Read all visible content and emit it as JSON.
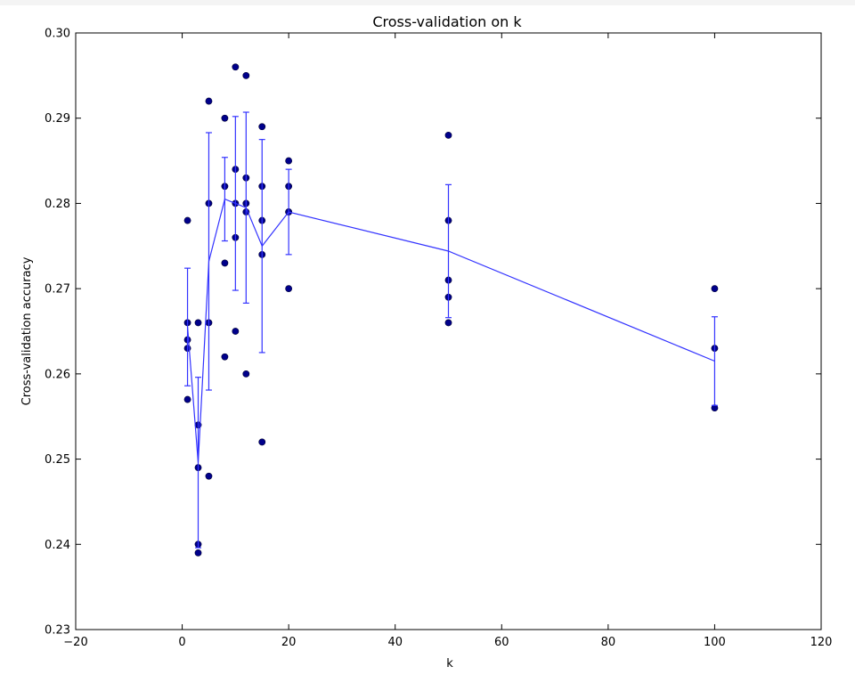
{
  "chart_data": {
    "type": "scatter",
    "title": "Cross-validation on k",
    "xlabel": "k",
    "ylabel": "Cross-validation accuracy",
    "xlim": [
      -20,
      120
    ],
    "ylim": [
      0.23,
      0.3
    ],
    "x_ticks": [
      -20,
      0,
      20,
      40,
      60,
      80,
      100,
      120
    ],
    "y_ticks": [
      0.23,
      0.24,
      0.25,
      0.26,
      0.27,
      0.28,
      0.29,
      0.3
    ],
    "x_tick_labels": [
      "−20",
      "0",
      "20",
      "40",
      "60",
      "80",
      "100",
      "120"
    ],
    "y_tick_labels": [
      "0.23",
      "0.24",
      "0.25",
      "0.26",
      "0.27",
      "0.28",
      "0.29",
      "0.30"
    ],
    "grid": false,
    "legend": "none",
    "colors": {
      "points": "#00008b",
      "line": "#3333ff"
    },
    "series": [
      {
        "type": "scatter",
        "points": [
          [
            1,
            0.257
          ],
          [
            1,
            0.263
          ],
          [
            1,
            0.264
          ],
          [
            1,
            0.266
          ],
          [
            1,
            0.278
          ],
          [
            3,
            0.239
          ],
          [
            3,
            0.24
          ],
          [
            3,
            0.249
          ],
          [
            3,
            0.254
          ],
          [
            3,
            0.266
          ],
          [
            5,
            0.248
          ],
          [
            5,
            0.266
          ],
          [
            5,
            0.28
          ],
          [
            5,
            0.292
          ],
          [
            8,
            0.262
          ],
          [
            8,
            0.273
          ],
          [
            8,
            0.282
          ],
          [
            8,
            0.29
          ],
          [
            10,
            0.265
          ],
          [
            10,
            0.276
          ],
          [
            10,
            0.28
          ],
          [
            10,
            0.284
          ],
          [
            10,
            0.296
          ],
          [
            12,
            0.26
          ],
          [
            12,
            0.279
          ],
          [
            12,
            0.28
          ],
          [
            12,
            0.283
          ],
          [
            12,
            0.295
          ],
          [
            15,
            0.252
          ],
          [
            15,
            0.274
          ],
          [
            15,
            0.278
          ],
          [
            15,
            0.282
          ],
          [
            15,
            0.289
          ],
          [
            20,
            0.27
          ],
          [
            20,
            0.279
          ],
          [
            20,
            0.279
          ],
          [
            20,
            0.282
          ],
          [
            20,
            0.285
          ],
          [
            50,
            0.266
          ],
          [
            50,
            0.269
          ],
          [
            50,
            0.271
          ],
          [
            50,
            0.278
          ],
          [
            50,
            0.288
          ],
          [
            100,
            0.256
          ],
          [
            100,
            0.263
          ],
          [
            100,
            0.27
          ]
        ]
      },
      {
        "type": "errorbar",
        "x": [
          1,
          3,
          5,
          8,
          10,
          12,
          15,
          20,
          50,
          100
        ],
        "mean": [
          0.2655,
          0.2496,
          0.2732,
          0.2805,
          0.28,
          0.2795,
          0.275,
          0.279,
          0.2744,
          0.2615
        ],
        "std": [
          0.0069,
          0.01,
          0.0151,
          0.0049,
          0.0102,
          0.0112,
          0.0125,
          0.005,
          0.0078,
          0.0052
        ]
      }
    ]
  }
}
